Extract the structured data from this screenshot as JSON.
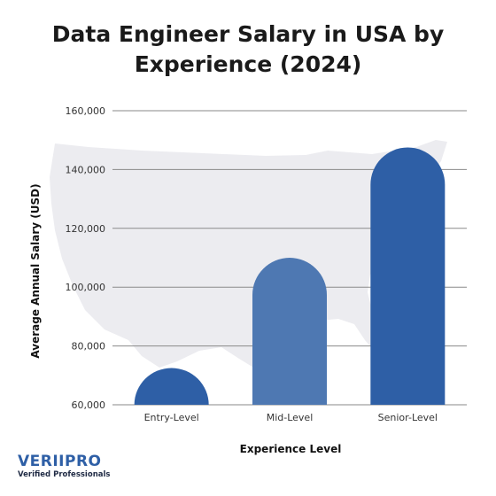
{
  "title_line1": "Data Engineer Salary in USA by",
  "title_line2": "Experience (2024)",
  "brand": {
    "name": "VERIIPRO",
    "tagline": "Verified Professionals"
  },
  "chart_data": {
    "type": "bar",
    "categories": [
      "Entry-Level",
      "Mid-Level",
      "Senior-Level"
    ],
    "values": [
      72500,
      110000,
      147500
    ],
    "ylim": [
      60000,
      160000
    ],
    "yticks": [
      60000,
      80000,
      100000,
      120000,
      140000,
      160000
    ],
    "ytick_labels": [
      "60,000",
      "80,000",
      "100,000",
      "120,000",
      "140,000",
      "160,000"
    ],
    "xlabel": "Experience Level",
    "ylabel": "Average Annual Salary (USD)",
    "bar_colors": [
      "#2e5fa6",
      "#4e78b2",
      "#2e5fa6"
    ],
    "grid": true,
    "background": "faint USA map silhouette"
  }
}
